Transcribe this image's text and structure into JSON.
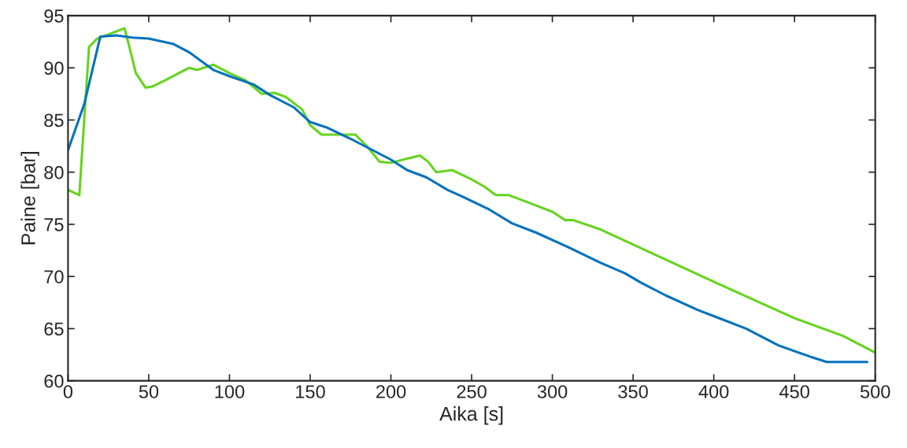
{
  "chart_data": {
    "type": "line",
    "xlabel": "Aika [s]",
    "ylabel": "Paine [bar]",
    "xlim": [
      0,
      500
    ],
    "ylim": [
      60,
      95
    ],
    "xticks": [
      0,
      50,
      100,
      150,
      200,
      250,
      300,
      350,
      400,
      450,
      500
    ],
    "yticks": [
      60,
      65,
      70,
      75,
      80,
      85,
      90,
      95
    ],
    "grid": false,
    "line_style": "solid",
    "marker": "none",
    "series": [
      {
        "color": "#66d41e",
        "x": [
          0,
          7,
          10,
          13,
          18,
          25,
          35,
          38,
          42,
          48,
          52,
          60,
          75,
          80,
          90,
          100,
          110,
          120,
          128,
          135,
          145,
          150,
          157,
          165,
          178,
          185,
          193,
          200,
          210,
          218,
          223,
          228,
          238,
          250,
          258,
          265,
          273,
          285,
          300,
          308,
          313,
          330,
          400,
          450,
          480,
          500
        ],
        "values": [
          78.3,
          77.8,
          85,
          92,
          92.8,
          93.2,
          93.8,
          92,
          89.5,
          88.1,
          88.2,
          88.8,
          90.0,
          89.8,
          90.3,
          89.5,
          88.8,
          87.5,
          87.6,
          87.2,
          86,
          84.5,
          83.6,
          83.6,
          83.6,
          82.5,
          81.0,
          80.9,
          81.3,
          81.6,
          81.0,
          80.0,
          80.2,
          79.3,
          78.6,
          77.8,
          77.8,
          77.1,
          76.2,
          75.4,
          75.4,
          74.5,
          69.5,
          66,
          64.3,
          62.7
        ]
      },
      {
        "color": "#0072bd",
        "x": [
          0,
          10,
          20,
          30,
          40,
          50,
          65,
          75,
          90,
          100,
          115,
          125,
          140,
          150,
          160,
          175,
          200,
          210,
          222,
          235,
          245,
          260,
          275,
          290,
          310,
          330,
          345,
          355,
          370,
          390,
          400,
          420,
          440,
          460,
          470,
          480,
          495
        ],
        "values": [
          82.1,
          86.5,
          93.0,
          93.1,
          92.9,
          92.8,
          92.3,
          91.5,
          89.8,
          89.2,
          88.4,
          87.4,
          86.2,
          84.8,
          84.3,
          83.2,
          81.2,
          80.2,
          79.5,
          78.3,
          77.6,
          76.5,
          75.1,
          74.2,
          72.8,
          71.3,
          70.3,
          69.4,
          68.2,
          66.8,
          66.2,
          65,
          63.4,
          62.3,
          61.8,
          61.8,
          61.8
        ]
      }
    ]
  }
}
